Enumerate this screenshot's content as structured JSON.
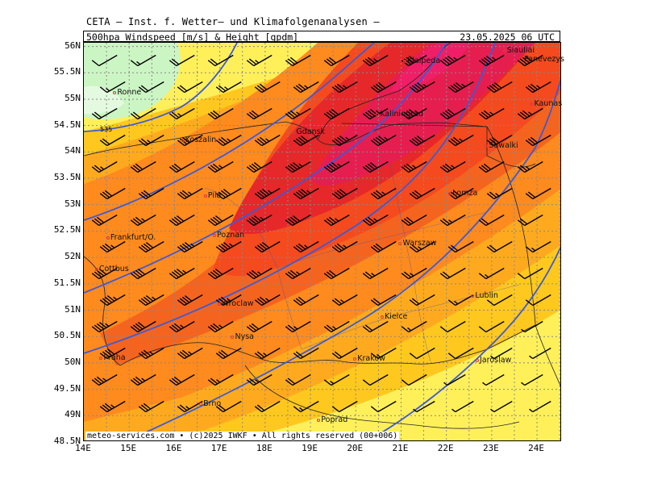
{
  "header": {
    "title": "CETA – Inst. f. Wetter– und Klimafolgenanalysen –",
    "field": "500hpa Windspeed [m/s] & Height [gpdm]",
    "valid": "23.05.2025 06 UTC"
  },
  "credit": "meteo-services.com • (c)2025 IWKF • All rights reserved (00+006)",
  "contour_label": "535",
  "lat_labels": [
    "56N",
    "55.5N",
    "55N",
    "54.5N",
    "54N",
    "53.5N",
    "53N",
    "52.5N",
    "52N",
    "51.5N",
    "51N",
    "50.5N",
    "50N",
    "49.5N",
    "49N",
    "48.5N"
  ],
  "lon_labels": [
    "14E",
    "15E",
    "16E",
    "17E",
    "18E",
    "19E",
    "20E",
    "21E",
    "22E",
    "23E",
    "24E"
  ],
  "cities": [
    {
      "name": "Siauliai",
      "lon": 23.3,
      "lat": 55.9
    },
    {
      "name": "Panevezys",
      "lon": 24.35,
      "lat": 55.73
    },
    {
      "name": "Klaipeda",
      "lon": 21.1,
      "lat": 55.7
    },
    {
      "name": "Ronne",
      "lon": 14.7,
      "lat": 55.1
    },
    {
      "name": "Kaunas",
      "lon": 23.9,
      "lat": 54.9
    },
    {
      "name": "Kaliningrad",
      "lon": 20.5,
      "lat": 54.7
    },
    {
      "name": "Gdansk",
      "lon": 18.65,
      "lat": 54.35
    },
    {
      "name": "Koszalin",
      "lon": 16.2,
      "lat": 54.2
    },
    {
      "name": "Suwalki",
      "lon": 22.9,
      "lat": 54.1
    },
    {
      "name": "Lomza",
      "lon": 22.1,
      "lat": 53.2
    },
    {
      "name": "Pila",
      "lon": 16.7,
      "lat": 53.15
    },
    {
      "name": "Poznan",
      "lon": 16.9,
      "lat": 52.4
    },
    {
      "name": "Frankfurt/O.",
      "lon": 14.55,
      "lat": 52.35
    },
    {
      "name": "Warszaw",
      "lon": 21.0,
      "lat": 52.25
    },
    {
      "name": "Cottbus",
      "lon": 14.3,
      "lat": 51.75
    },
    {
      "name": "Lublin",
      "lon": 22.6,
      "lat": 51.25
    },
    {
      "name": "Wroclaw",
      "lon": 17.0,
      "lat": 51.1
    },
    {
      "name": "Kielce",
      "lon": 20.6,
      "lat": 50.85
    },
    {
      "name": "Nysa",
      "lon": 17.3,
      "lat": 50.47
    },
    {
      "name": "Praha",
      "lon": 14.4,
      "lat": 50.08
    },
    {
      "name": "Krakow",
      "lon": 20.0,
      "lat": 50.06
    },
    {
      "name": "Jaroslaw",
      "lon": 22.7,
      "lat": 50.03
    },
    {
      "name": "Brno",
      "lon": 16.6,
      "lat": 49.2
    },
    {
      "name": "Poprad",
      "lon": 19.2,
      "lat": 48.9
    }
  ],
  "colors": {
    "light_green": "#ccf5c4",
    "pale_green": "#e4fae0",
    "yellow": "#fff05a",
    "gold": "#ffc81e",
    "light_orange": "#ffaa1e",
    "orange": "#ff8a1e",
    "dark_orange": "#f5641e",
    "red_orange": "#f54a1e",
    "red": "#e6282a",
    "crimson": "#e61e50",
    "contour": "#3a5ad8",
    "grid": "#888888"
  }
}
